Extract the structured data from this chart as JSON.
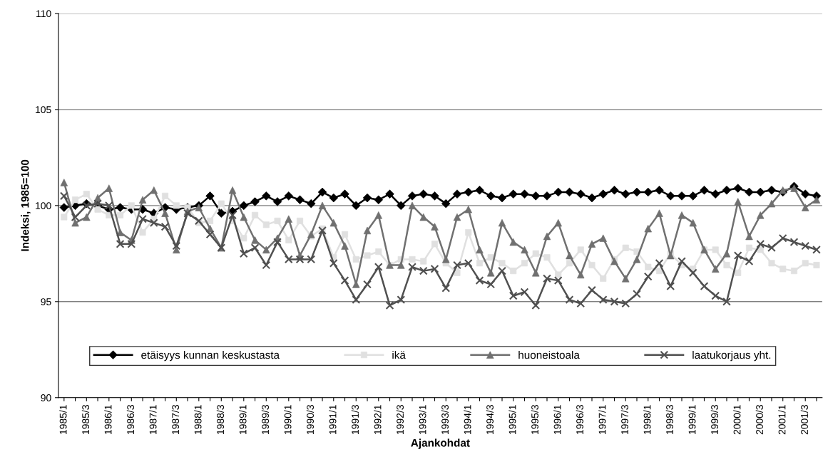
{
  "chart_data": {
    "type": "line",
    "xlabel": "Ajankohdat",
    "ylabel": "Indeksi, 1985=100",
    "categories": [
      "1985/1",
      null,
      "1985/3",
      null,
      "1986/1",
      null,
      "1986/3",
      null,
      "1987/1",
      null,
      "1987/3",
      null,
      "1988/1",
      null,
      "1988/3",
      null,
      "1989/1",
      null,
      "1989/3",
      null,
      "1990/1",
      null,
      "1990/3",
      null,
      "1991/1",
      null,
      "1991/3",
      null,
      "1992/1",
      null,
      "1992/3",
      null,
      "1993/1",
      null,
      "1993/3",
      null,
      "1994/1",
      null,
      "1994/3",
      null,
      "1995/1",
      null,
      "1995/3",
      null,
      "1996/1",
      null,
      "1996/3",
      null,
      "1997/1",
      null,
      "1997/3",
      null,
      "1998/1",
      null,
      "1998/3",
      null,
      "1999/1",
      null,
      "1999/3",
      null,
      "2000/1",
      null,
      "2000/3",
      null,
      "2001/1",
      null,
      "2001/3",
      null
    ],
    "series": [
      {
        "name": "etäisyys kunnan keskustasta",
        "color": "#000000",
        "marker": "diamond",
        "values": [
          99.9,
          100.0,
          100.1,
          100.0,
          99.8,
          99.9,
          99.8,
          99.8,
          99.6,
          99.9,
          99.8,
          99.9,
          100.0,
          100.5,
          99.6,
          99.7,
          100.0,
          100.2,
          100.5,
          100.2,
          100.5,
          100.3,
          100.1,
          100.7,
          100.4,
          100.6,
          100.0,
          100.4,
          100.3,
          100.6,
          100.0,
          100.5,
          100.6,
          100.5,
          100.1,
          100.6,
          100.7,
          100.8,
          100.5,
          100.4,
          100.6,
          100.6,
          100.5,
          100.5,
          100.7,
          100.7,
          100.6,
          100.4,
          100.6,
          100.8,
          100.6,
          100.7,
          100.7,
          100.8,
          100.5,
          100.5,
          100.5,
          100.8,
          100.6,
          100.8,
          100.9,
          100.7,
          100.7,
          100.8,
          100.7,
          101.0,
          100.6,
          100.5
        ]
      },
      {
        "name": "ikä",
        "color": "#e0e0e0",
        "marker": "square",
        "values": [
          99.4,
          100.3,
          100.6,
          99.8,
          99.5,
          99.5,
          100.0,
          98.6,
          99.3,
          100.5,
          100.0,
          99.9,
          99.1,
          99.2,
          100.1,
          99.2,
          98.3,
          99.5,
          99.0,
          99.2,
          98.2,
          99.2,
          98.4,
          98.8,
          97.3,
          98.5,
          97.2,
          97.4,
          97.6,
          96.9,
          97.2,
          97.2,
          97.1,
          98.0,
          97.0,
          96.5,
          98.6,
          97.0,
          97.3,
          97.0,
          96.6,
          97.0,
          97.5,
          97.3,
          96.4,
          97.0,
          97.7,
          96.9,
          96.2,
          97.2,
          97.8,
          97.6,
          96.8,
          96.6,
          97.5,
          96.9,
          96.7,
          97.7,
          97.7,
          96.9,
          96.5,
          97.8,
          97.7,
          97.0,
          96.7,
          96.6,
          97.0,
          96.9
        ]
      },
      {
        "name": "huoneistoala",
        "color": "#707070",
        "marker": "triangle",
        "values": [
          101.2,
          99.1,
          99.4,
          100.4,
          100.9,
          98.6,
          98.2,
          100.3,
          100.8,
          99.6,
          97.7,
          99.7,
          99.9,
          98.8,
          97.8,
          100.8,
          99.4,
          98.2,
          97.7,
          98.3,
          99.3,
          97.4,
          98.5,
          100.0,
          99.1,
          97.9,
          95.9,
          98.7,
          99.5,
          96.9,
          96.9,
          100.0,
          99.4,
          98.9,
          97.2,
          99.4,
          99.8,
          97.7,
          96.5,
          99.1,
          98.1,
          97.7,
          96.5,
          98.4,
          99.1,
          97.4,
          96.4,
          98.0,
          98.3,
          97.1,
          96.2,
          97.2,
          98.8,
          99.6,
          97.4,
          99.5,
          99.1,
          97.7,
          96.7,
          97.5,
          100.2,
          98.4,
          99.5,
          100.1,
          100.8,
          100.9,
          99.9,
          100.3
        ]
      },
      {
        "name": "laatukorjaus yht.",
        "color": "#505050",
        "marker": "cross",
        "values": [
          100.5,
          99.4,
          100.0,
          100.1,
          100.0,
          98.0,
          98.0,
          99.3,
          99.1,
          98.9,
          97.9,
          99.6,
          99.2,
          98.5,
          97.8,
          99.5,
          97.5,
          97.8,
          96.9,
          98.1,
          97.2,
          97.2,
          97.2,
          98.7,
          97.0,
          96.1,
          95.1,
          95.9,
          96.8,
          94.8,
          95.1,
          96.8,
          96.6,
          96.7,
          95.7,
          96.9,
          97.0,
          96.1,
          95.9,
          96.6,
          95.3,
          95.5,
          94.8,
          96.2,
          96.1,
          95.1,
          94.9,
          95.6,
          95.1,
          95.0,
          94.9,
          95.4,
          96.3,
          97.0,
          95.8,
          97.1,
          96.5,
          95.8,
          95.3,
          95.0,
          97.4,
          97.1,
          98.0,
          97.8,
          98.3,
          98.1,
          97.9,
          97.7
        ]
      }
    ],
    "ylim": [
      90,
      110
    ],
    "yticks": [
      90,
      95,
      100,
      105,
      110
    ],
    "grid": "y",
    "legend": "bottom",
    "line_style": "solid"
  }
}
